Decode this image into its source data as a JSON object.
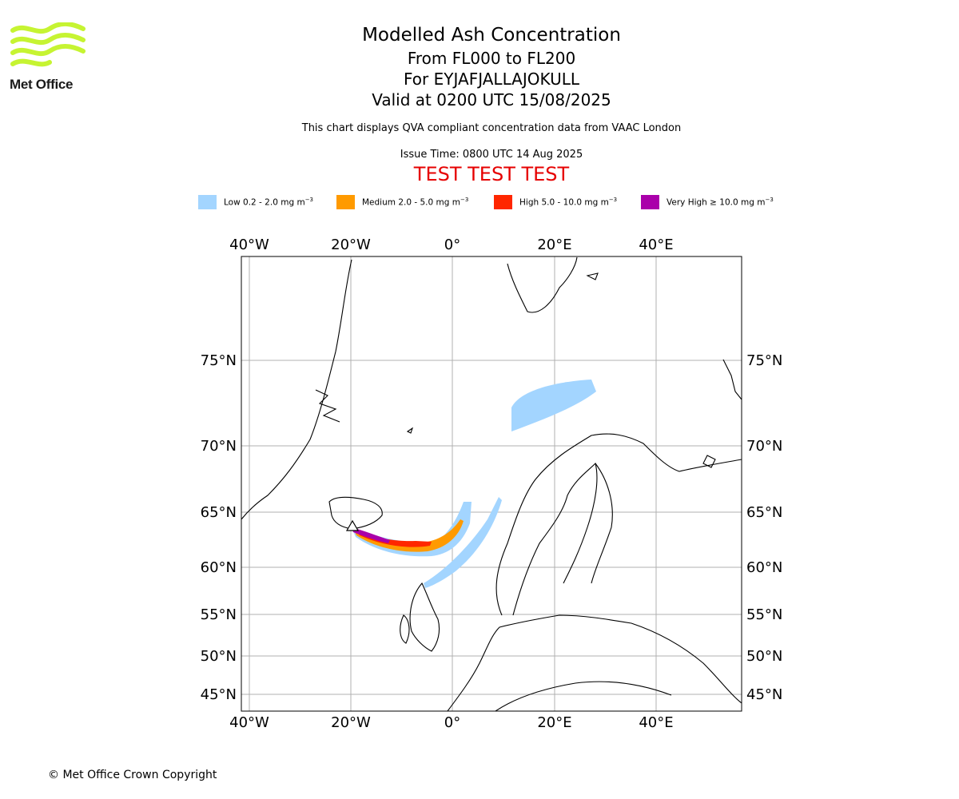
{
  "logo": {
    "text": "Met Office",
    "color": "#c6f432"
  },
  "title": {
    "line1": "Modelled Ash Concentration",
    "line2": "From FL000 to FL200",
    "line3": "For EYJAFJALLAJOKULL",
    "line4": "Valid at 0200 UTC 15/08/2025"
  },
  "subtitle": "This chart displays QVA compliant concentration data from VAAC London",
  "issue_time": "Issue Time: 0800 UTC 14 Aug 2025",
  "test_banner": "TEST TEST TEST",
  "test_color": "#e60000",
  "legend": [
    {
      "label": "Low 0.2 - 2.0 mg m",
      "sup": "−3",
      "color": "#a3d5ff"
    },
    {
      "label": "Medium 2.0 - 5.0 mg m",
      "sup": "−3",
      "color": "#ff9a00"
    },
    {
      "label": "High 5.0 - 10.0 mg m",
      "sup": "−3",
      "color": "#ff2600"
    },
    {
      "label": "Very High ≥ 10.0 mg m",
      "sup": "−3",
      "color": "#aa00aa"
    }
  ],
  "map": {
    "lon_labels": [
      "40°W",
      "20°W",
      "0°",
      "20°E",
      "40°E"
    ],
    "lat_labels": [
      "75°N",
      "70°N",
      "65°N",
      "60°N",
      "55°N",
      "50°N",
      "45°N"
    ],
    "gridlines": true,
    "volcano_icon": "volcano-triangle-icon"
  },
  "copyright": "© Met Office Crown Copyright"
}
